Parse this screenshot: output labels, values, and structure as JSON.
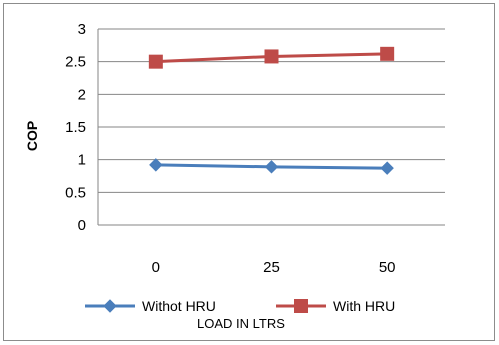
{
  "chart_data": {
    "type": "line",
    "title": "",
    "xlabel": "LOAD IN LTRS",
    "ylabel": "COP",
    "categories": [
      "0",
      "25",
      "50"
    ],
    "ylim": [
      0,
      3
    ],
    "yticks": [
      "0",
      "0.5",
      "1",
      "1.5",
      "2",
      "2.5",
      "3"
    ],
    "grid": true,
    "legend_position": "bottom",
    "series": [
      {
        "name": "Withot HRU",
        "values": [
          0.92,
          0.89,
          0.87
        ],
        "color": "#4a7ebb",
        "marker": "diamond"
      },
      {
        "name": "With HRU",
        "values": [
          2.5,
          2.58,
          2.62
        ],
        "color": "#be4b48",
        "marker": "square"
      }
    ]
  }
}
